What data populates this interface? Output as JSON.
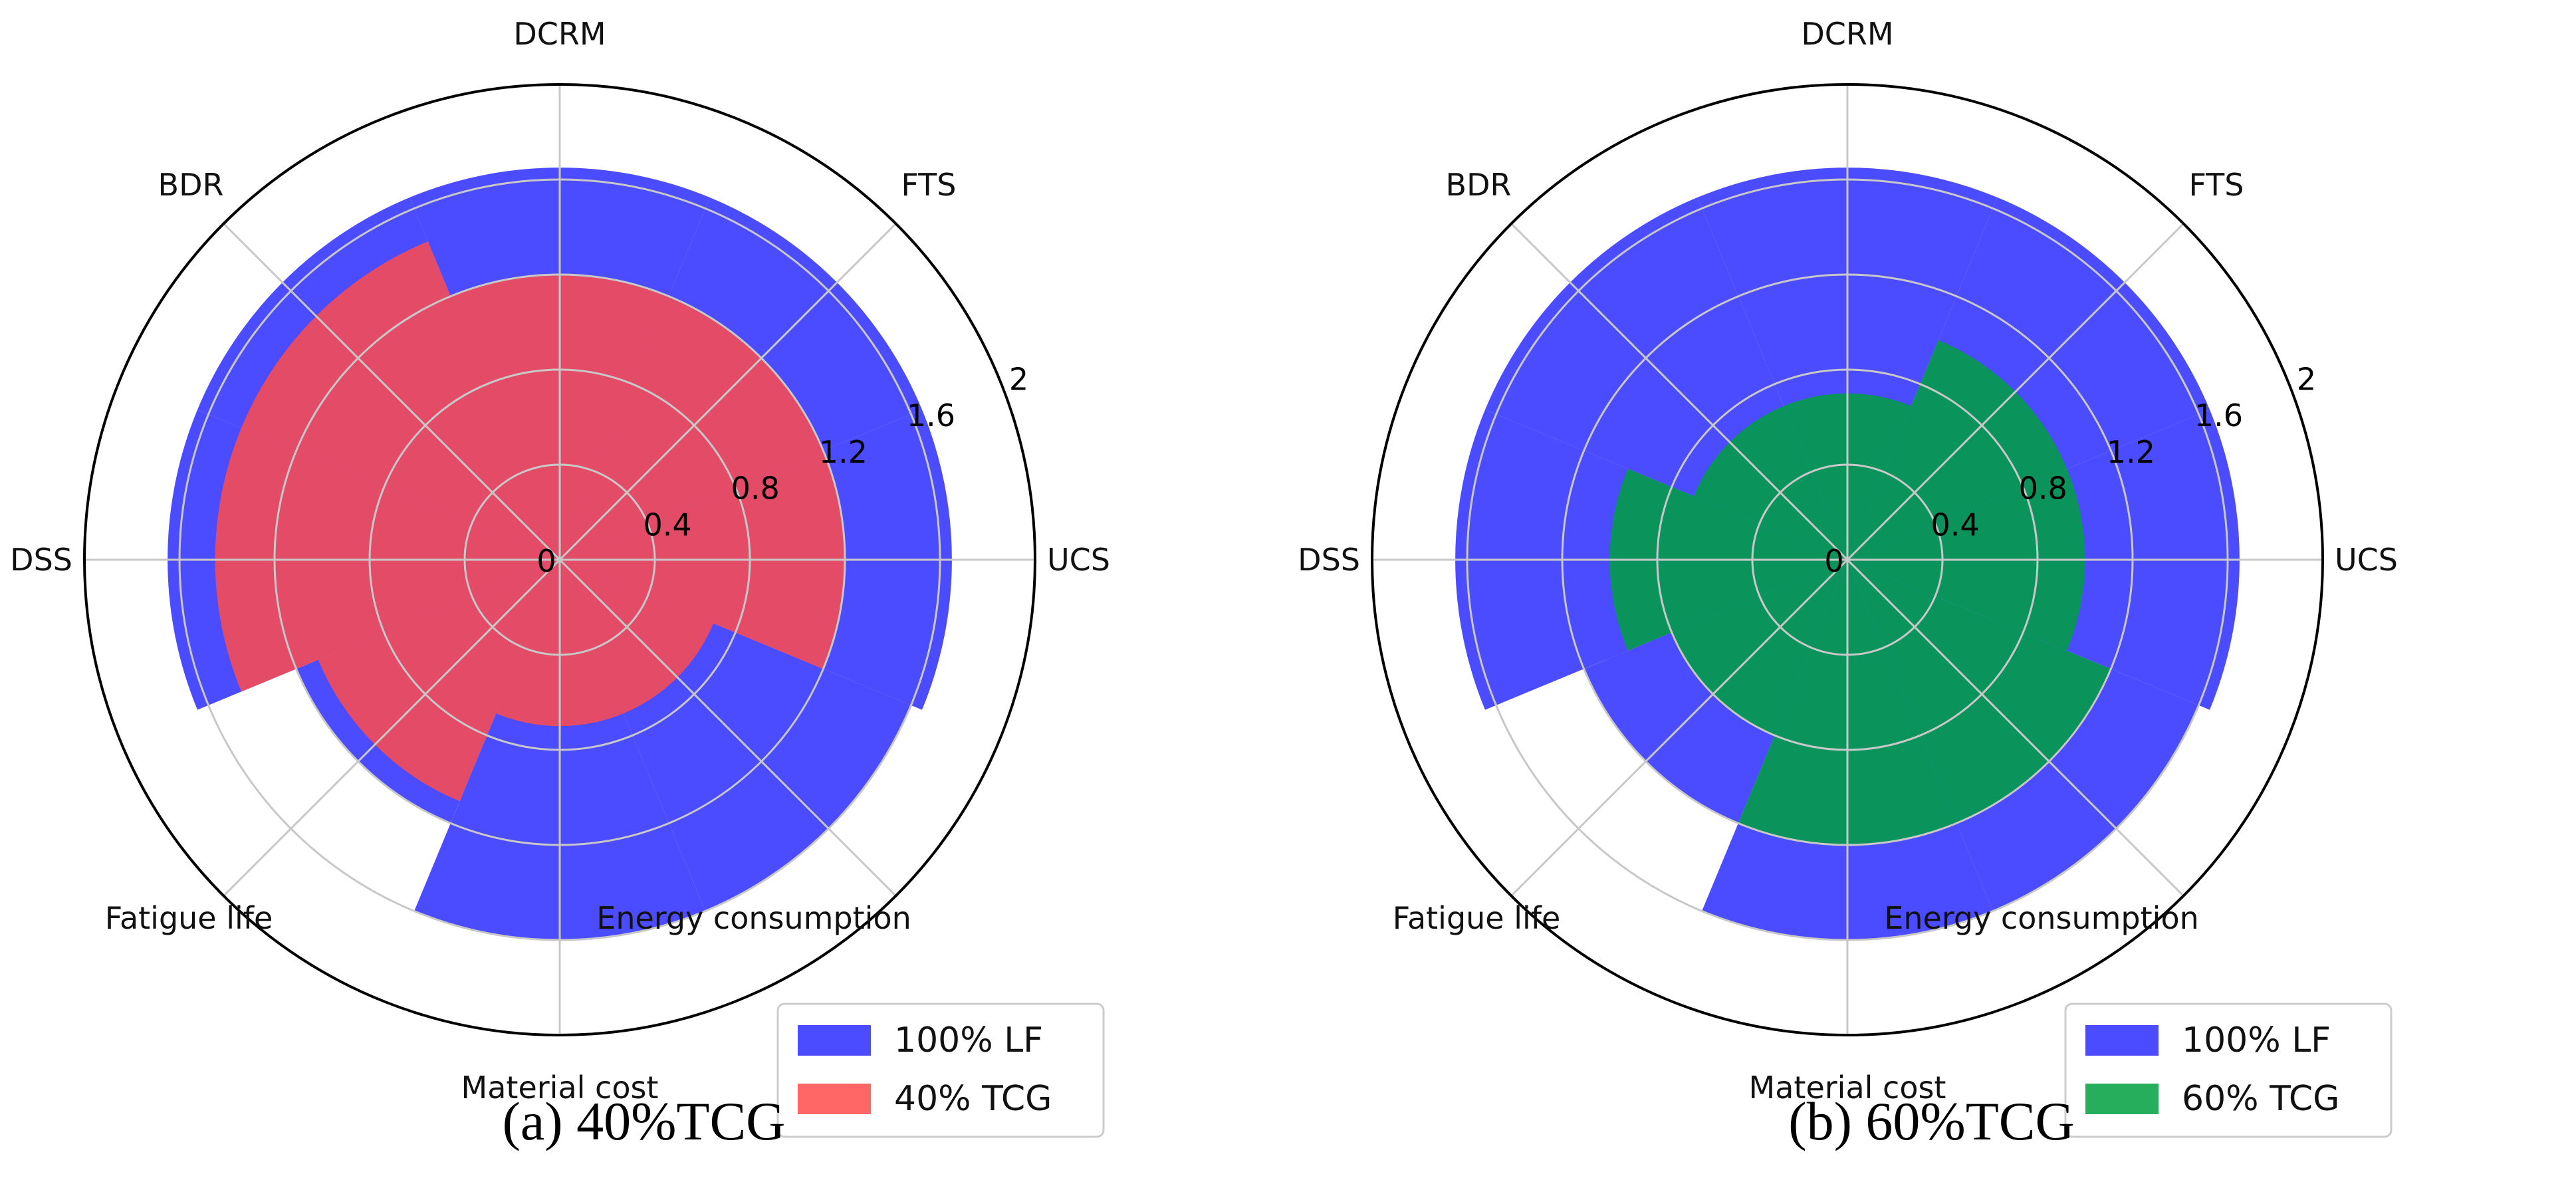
{
  "chart_data": [
    {
      "type": "polar-bar",
      "caption": "(a) 40%TCG",
      "categories": [
        "UCS",
        "FTS",
        "DCRM",
        "BDR",
        "DSS",
        "Fatigue life",
        "Material cost",
        "Energy consumption"
      ],
      "rticks": [
        "0",
        "0.4",
        "0.8",
        "1.2",
        "1.6",
        "2"
      ],
      "rlim": [
        0,
        2
      ],
      "series": [
        {
          "name": "100% LF",
          "color": "#4b4bff",
          "values": [
            1.65,
            1.65,
            1.65,
            1.65,
            1.65,
            1.2,
            1.6,
            1.6
          ]
        },
        {
          "name": "40% TCG",
          "color": "#ff4b4b",
          "values": [
            1.2,
            1.2,
            1.2,
            1.45,
            1.45,
            1.1,
            0.7,
            0.7
          ]
        }
      ]
    },
    {
      "type": "polar-bar",
      "caption": "(b) 60%TCG",
      "categories": [
        "UCS",
        "FTS",
        "DCRM",
        "BDR",
        "DSS",
        "Fatigue life",
        "Material cost",
        "Energy consumption"
      ],
      "rticks": [
        "0",
        "0.4",
        "0.8",
        "1.2",
        "1.6",
        "2"
      ],
      "rlim": [
        0,
        2
      ],
      "series": [
        {
          "name": "100% LF",
          "color": "#4b4bff",
          "values": [
            1.65,
            1.65,
            1.65,
            1.65,
            1.65,
            1.2,
            1.6,
            1.6
          ]
        },
        {
          "name": "60% TCG",
          "color": "#00a040",
          "values": [
            1.0,
            1.0,
            0.7,
            0.7,
            1.0,
            0.8,
            1.2,
            1.2
          ]
        }
      ]
    }
  ]
}
